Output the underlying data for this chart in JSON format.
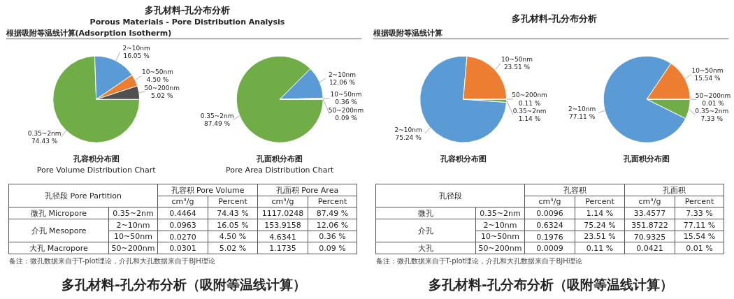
{
  "chart_data": [
    {
      "type": "other",
      "title": "多孔材料-孔分布分析",
      "subtitle": "Porous Materials - Pore Distribution Analysis",
      "annotations": [
        "根据吸附等温线计算(Adsorption Isotherm)"
      ]
    },
    {
      "type": "pie",
      "title": "孔容积分布图",
      "subtitle": "Pore Volume Distribution Chart",
      "categories": [
        "0.35~2nm",
        "2~10nm",
        "10~50nm",
        "50~200nm"
      ],
      "values": [
        74.43,
        16.05,
        4.5,
        5.02
      ],
      "colors": [
        "#70ad47",
        "#5b9bd5",
        "#ed7d31",
        "#505050"
      ],
      "value_labels": [
        "74.43 %",
        "16.05 %",
        "4.50 %",
        "5.02 %"
      ]
    },
    {
      "type": "pie",
      "title": "孔面积分布图",
      "subtitle": "Pore Area Distribution Chart",
      "categories": [
        "0.35~2nm",
        "2~10nm",
        "10~50nm",
        "50~200nm"
      ],
      "values": [
        87.49,
        12.06,
        0.36,
        0.09
      ],
      "colors": [
        "#70ad47",
        "#5b9bd5",
        "#ed7d31",
        "#505050"
      ],
      "value_labels": [
        "87.49 %",
        "12.06 %",
        "0.36 %",
        "0.09 %"
      ]
    },
    {
      "type": "other",
      "annotations": [
        "孔径段 Pore Partition",
        "孔容积 Pore Volume",
        "孔面积 Pore Area",
        "cm³/g",
        "Percent",
        "cm³/g",
        "Percent",
        "微孔 Micropore",
        "0.35~2nm",
        "0.4464",
        "74.43 %",
        "1117.0248",
        "87.49 %",
        "介孔 Mesopore",
        "2~10nm",
        "0.0963",
        "16.05 %",
        "153.9158",
        "12.06 %",
        "10~50nm",
        "0.0270",
        "4.50 %",
        "4.6341",
        "0.36 %",
        "大孔 Macropore",
        "50~200nm",
        "0.0301",
        "5.02 %",
        "1.1735",
        "0.09 %",
        "备注：微孔数据来自于T-plot理论，介孔和大孔数据来自于BJH理论"
      ]
    },
    {
      "type": "other",
      "title": "多孔材料-孔分布分析（吸附等温线计算）"
    },
    {
      "type": "other",
      "title": "多孔材料-孔分布分析",
      "annotations": [
        "根据吸附等温线计算"
      ]
    },
    {
      "type": "pie",
      "title": "孔容积分布图",
      "categories": [
        "0.35~2nm",
        "2~10nm",
        "10~50nm",
        "50~200nm"
      ],
      "values": [
        1.14,
        75.24,
        23.51,
        0.11
      ],
      "colors": [
        "#70ad47",
        "#5b9bd5",
        "#ed7d31",
        "#505050"
      ],
      "value_labels": [
        "1.14 %",
        "75.24 %",
        "23.51 %",
        "0.11 %"
      ]
    },
    {
      "type": "pie",
      "title": "孔面积分布图",
      "categories": [
        "0.35~2nm",
        "2~10nm",
        "10~50nm",
        "50~200nm"
      ],
      "values": [
        7.33,
        77.11,
        15.54,
        0.01
      ],
      "colors": [
        "#70ad47",
        "#5b9bd5",
        "#ed7d31",
        "#505050"
      ],
      "value_labels": [
        "7.33 %",
        "77.11 %",
        "15.54 %",
        "0.01 %"
      ]
    },
    {
      "type": "other",
      "annotations": [
        "孔径段",
        "孔容积",
        "孔面积",
        "cm³/g",
        "Percent",
        "cm³/g",
        "Percent",
        "微孔",
        "0.35~2nm",
        "0.0096",
        "1.14 %",
        "33.4577",
        "7.33 %",
        "介孔",
        "2~10nm",
        "0.6324",
        "75.24 %",
        "351.8722",
        "77.11 %",
        "10~50nm",
        "0.1976",
        "23.51 %",
        "70.9325",
        "15.54 %",
        "大孔",
        "50~200nm",
        "0.0009",
        "0.11 %",
        "0.0421",
        "0.01 %",
        "备注：微孔数据来自于T-plot理论，介孔和大孔数据来自于BJH理论"
      ]
    },
    {
      "type": "other",
      "title": "多孔材料-孔分布分析（吸附等温线计算）"
    }
  ]
}
